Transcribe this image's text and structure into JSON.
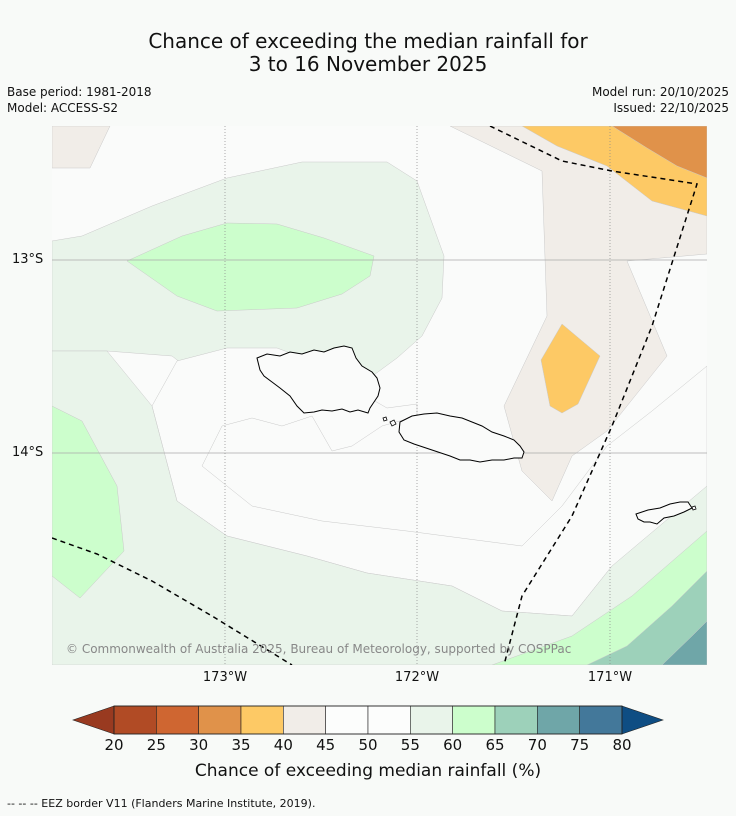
{
  "title": {
    "line1": "Chance of exceeding the median rainfall for",
    "line2": "3 to 16 November 2025"
  },
  "meta": {
    "base_period": "Base period: 1981-2018",
    "model": "Model: ACCESS-S2",
    "model_run": "Model run: 20/10/2025",
    "issued": "Issued: 22/10/2025"
  },
  "map": {
    "lat_labels": [
      "13°S",
      "14°S"
    ],
    "lon_labels": [
      "173°W",
      "172°W",
      "171°W"
    ],
    "copyright": "© Commonwealth of Australia 2025, Bureau of Meteorology, supported by COSPPac",
    "colors": {
      "c25_30": "#b14b25",
      "c30_35": "#e0924a",
      "c35_40": "#fdc965",
      "c40_45": "#f1ede8",
      "c45_55": "#fafbfa",
      "c55_60": "#e9f4ea",
      "c60_65": "#ccfecc",
      "c65_70": "#9dd1ba",
      "c70_75": "#6fa6a8",
      "coast": "#000000",
      "eez": "#000000"
    }
  },
  "colorbar": {
    "ticks": [
      "20",
      "25",
      "30",
      "35",
      "40",
      "45",
      "50",
      "55",
      "60",
      "65",
      "70",
      "75",
      "80"
    ],
    "label": "Chance of exceeding median rainfall (%)",
    "under_color": "#993a20",
    "over_color": "#0e4d83",
    "colors": [
      "#b14b25",
      "#cf6631",
      "#e0924a",
      "#fdc965",
      "#f1ede8",
      "#fcfdfc",
      "#fcfdfc",
      "#e9f4ea",
      "#ccfecc",
      "#9dd1ba",
      "#6fa6a8",
      "#43789a"
    ]
  },
  "footer": {
    "legend": "-- -- -- EEZ border V11 (Flanders Marine Institute, 2019)."
  }
}
